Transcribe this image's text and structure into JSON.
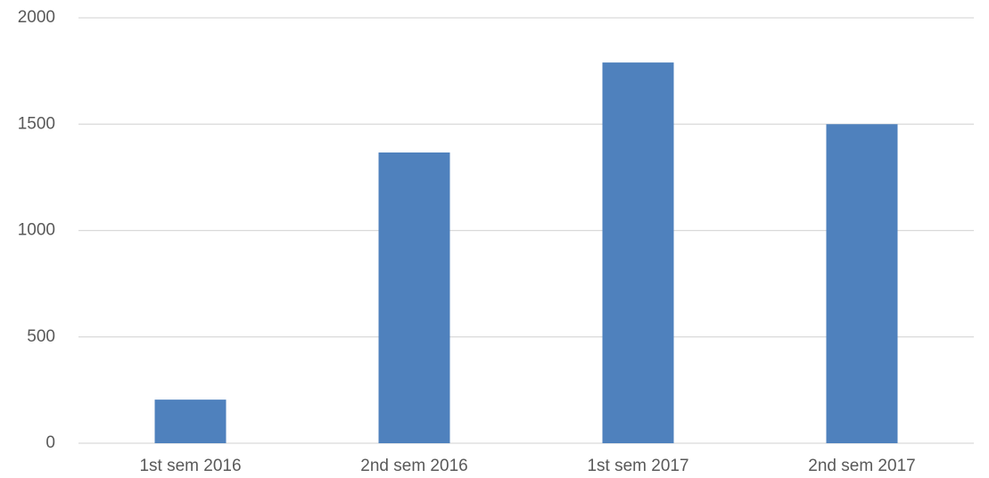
{
  "chart_data": {
    "type": "bar",
    "categories": [
      "1st sem 2016",
      "2nd sem 2016",
      "1st sem 2017",
      "2nd sem 2017"
    ],
    "values": [
      205,
      1367,
      1790,
      1500
    ],
    "color": "#4f81bd",
    "ylim": [
      0,
      2000
    ],
    "yticks": [
      0,
      500,
      1000,
      1500,
      2000
    ],
    "grid": true
  }
}
